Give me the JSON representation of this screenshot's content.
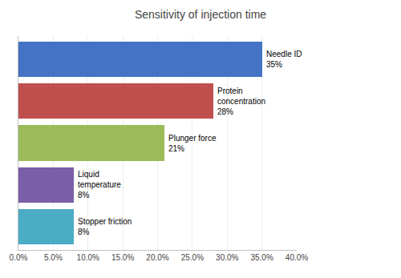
{
  "chart_data": {
    "type": "bar",
    "orientation": "horizontal",
    "title": "Sensitivity of injection time",
    "categories": [
      "Needle ID\n35%",
      "Protein\nconcentration\n28%",
      "Plunger force\n21%",
      "Liquid\ntemperature\n8%",
      "Stopper friction\n8%"
    ],
    "values": [
      0.35,
      0.28,
      0.21,
      0.08,
      0.08
    ],
    "colors": [
      "#4472C4",
      "#C0504D",
      "#9BBB59",
      "#7A5EA7",
      "#4BACC6"
    ],
    "xlim": [
      0.0,
      0.4
    ],
    "xticks": [
      {
        "value": 0.0,
        "label": "0.0%"
      },
      {
        "value": 0.05,
        "label": "5.0%"
      },
      {
        "value": 0.1,
        "label": "10.0%"
      },
      {
        "value": 0.15,
        "label": "15.0%"
      },
      {
        "value": 0.2,
        "label": "20.0%"
      },
      {
        "value": 0.25,
        "label": "25.0%"
      },
      {
        "value": 0.3,
        "label": "30.0%"
      },
      {
        "value": 0.35,
        "label": "35.0%"
      },
      {
        "value": 0.4,
        "label": "40.0%"
      }
    ],
    "grid": true,
    "tick_labels": "x"
  }
}
